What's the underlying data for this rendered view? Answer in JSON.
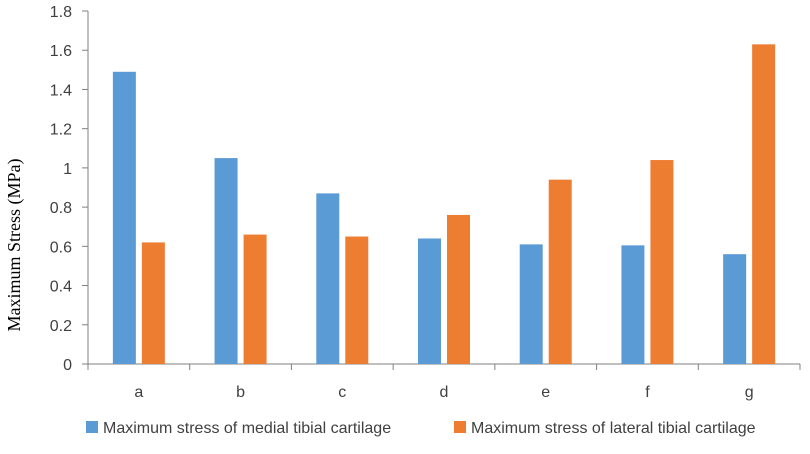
{
  "chart_data": {
    "type": "bar",
    "title": "",
    "xlabel": "",
    "ylabel": "Maximum Stress (MPa)",
    "categories": [
      "a",
      "b",
      "c",
      "d",
      "e",
      "f",
      "g"
    ],
    "ylim": [
      0,
      1.8
    ],
    "yticks": [
      0,
      0.2,
      0.4,
      0.6,
      0.8,
      1,
      1.2,
      1.4,
      1.6,
      1.8
    ],
    "ytick_labels": [
      "0",
      "0.2",
      "0.4",
      "0.6",
      "0.8",
      "1",
      "1.2",
      "1.4",
      "1.6",
      "1.8"
    ],
    "grid": false,
    "legend_position": "bottom",
    "series": [
      {
        "name": "Maximum stress of medial tibial cartilage",
        "color": "#5B9BD5",
        "values": [
          1.49,
          1.05,
          0.87,
          0.64,
          0.61,
          0.605,
          0.56
        ]
      },
      {
        "name": "Maximum stress of lateral tibial cartilage",
        "color": "#ED7D31",
        "values": [
          0.62,
          0.66,
          0.65,
          0.76,
          0.94,
          1.04,
          1.63
        ]
      }
    ]
  }
}
